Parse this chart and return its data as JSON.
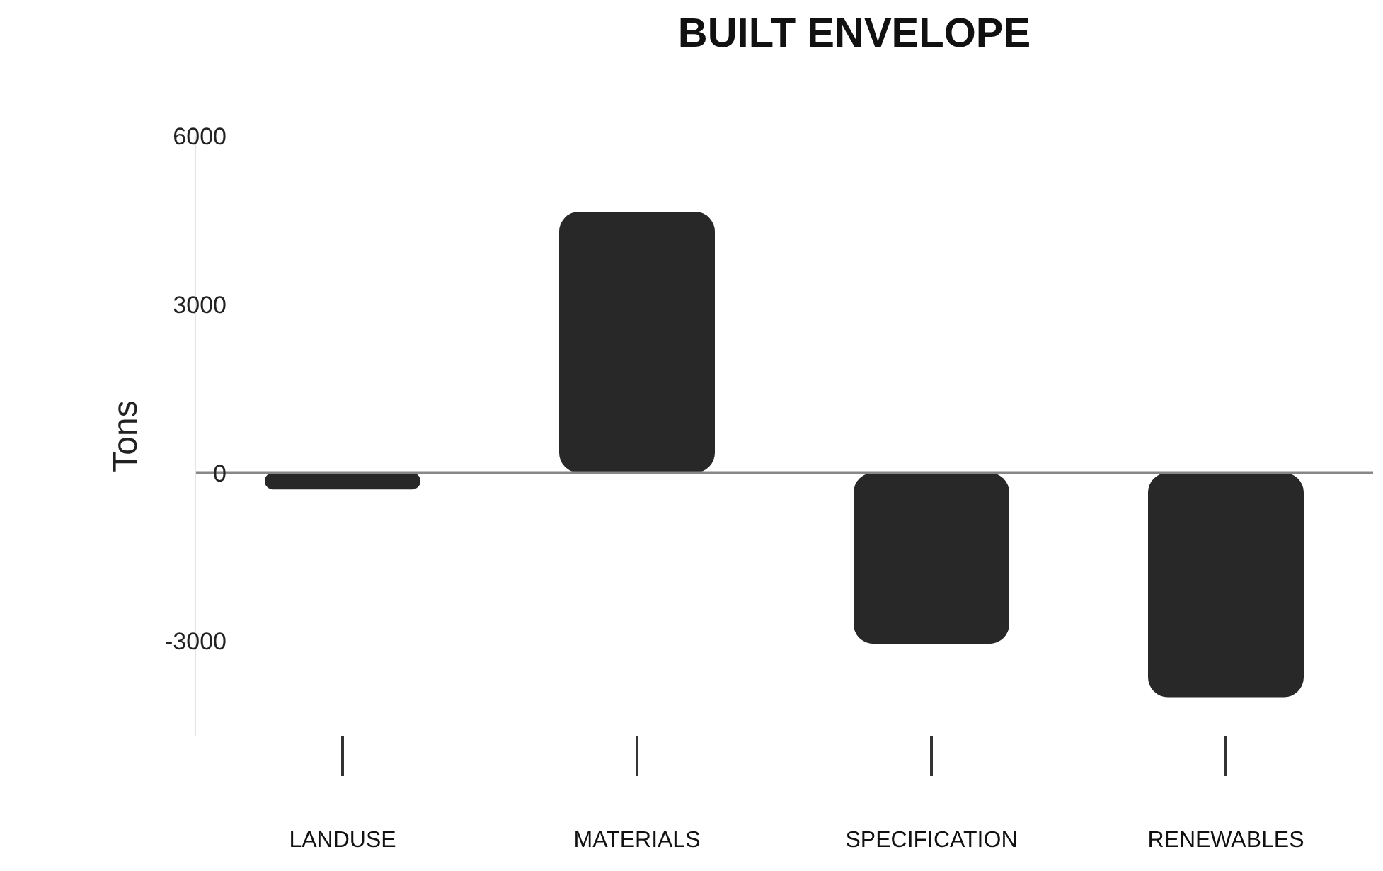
{
  "chart_data": {
    "type": "bar",
    "title": "BUILT ENVELOPE",
    "ylabel": "Tons",
    "categories": [
      "LANDUSE",
      "MATERIALS",
      "SPECIFICATION",
      "RENEWABLES"
    ],
    "values": [
      -300,
      4650,
      -3050,
      -4000
    ],
    "color": "#282828",
    "ylim": [
      -4700,
      6000
    ],
    "yticks": [
      -3000,
      0,
      3000,
      6000
    ],
    "ref_lines": [
      {
        "axis": "y",
        "value": 0,
        "color": "#888888"
      }
    ]
  }
}
